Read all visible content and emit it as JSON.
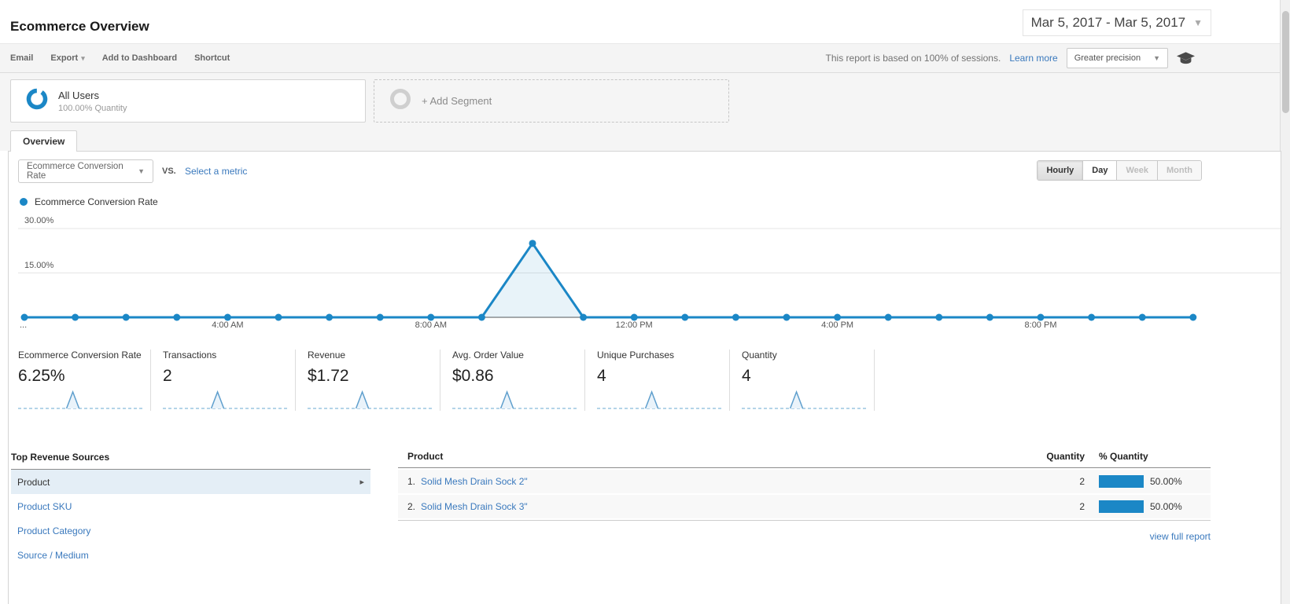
{
  "header": {
    "title": "Ecommerce Overview",
    "date_range": "Mar 5, 2017 - Mar 5, 2017"
  },
  "toolbar": {
    "actions": [
      {
        "label": "Email",
        "caret": false
      },
      {
        "label": "Export",
        "caret": true
      },
      {
        "label": "Add to Dashboard",
        "caret": false
      },
      {
        "label": "Shortcut",
        "caret": false
      }
    ],
    "sampling_note": "This report is based on 100% of sessions.",
    "learn_more_label": "Learn more",
    "precision_label": "Greater precision"
  },
  "segments": {
    "all_users": {
      "name": "All Users",
      "detail": "100.00% Quantity"
    },
    "add_segment_label": "+ Add Segment"
  },
  "tabs": {
    "overview_label": "Overview"
  },
  "controls": {
    "metric_selector_value": "Ecommerce Conversion Rate",
    "vs_label": "vs.",
    "select_metric_label": "Select a metric",
    "granularity": [
      {
        "label": "Hourly",
        "state": "active"
      },
      {
        "label": "Day",
        "state": "default"
      },
      {
        "label": "Week",
        "state": "disabled"
      },
      {
        "label": "Month",
        "state": "disabled"
      }
    ]
  },
  "chart_data": {
    "type": "line",
    "title": "Ecommerce Conversion Rate",
    "unit": "%",
    "x_unit": "hour of day",
    "x": [
      0,
      1,
      2,
      3,
      4,
      5,
      6,
      7,
      8,
      9,
      10,
      11,
      12,
      13,
      14,
      15,
      16,
      17,
      18,
      19,
      20,
      21,
      22,
      23
    ],
    "values": [
      0,
      0,
      0,
      0,
      0,
      0,
      0,
      0,
      0,
      0,
      25,
      0,
      0,
      0,
      0,
      0,
      0,
      0,
      0,
      0,
      0,
      0,
      0,
      0
    ],
    "peak": {
      "hour_index": 10,
      "value_pct": 25
    },
    "ylim": [
      0,
      35
    ],
    "yticks": [
      {
        "value": 30,
        "label": "30.00%"
      },
      {
        "value": 15,
        "label": "15.00%"
      }
    ],
    "xticks": [
      {
        "index": 0,
        "label": "..."
      },
      {
        "index": 4,
        "label": "4:00 AM"
      },
      {
        "index": 8,
        "label": "8:00 AM"
      },
      {
        "index": 12,
        "label": "12:00 PM"
      },
      {
        "index": 16,
        "label": "4:00 PM"
      },
      {
        "index": 20,
        "label": "8:00 PM"
      }
    ],
    "grid": true,
    "legend_position": "top-left"
  },
  "scorecards": [
    {
      "label": "Ecommerce Conversion Rate",
      "value": "6.25%"
    },
    {
      "label": "Transactions",
      "value": "2"
    },
    {
      "label": "Revenue",
      "value": "$1.72"
    },
    {
      "label": "Avg. Order Value",
      "value": "$0.86"
    },
    {
      "label": "Unique Purchases",
      "value": "4"
    },
    {
      "label": "Quantity",
      "value": "4"
    }
  ],
  "sparkline": {
    "points": 24,
    "spike_index": 10
  },
  "sources": {
    "title": "Top Revenue Sources",
    "items": [
      {
        "label": "Product",
        "selected": true
      },
      {
        "label": "Product SKU",
        "selected": false
      },
      {
        "label": "Product Category",
        "selected": false
      },
      {
        "label": "Source / Medium",
        "selected": false
      }
    ]
  },
  "table": {
    "headers": [
      "Product",
      "Quantity",
      "% Quantity"
    ],
    "rows": [
      {
        "rank": "1.",
        "product": "Solid Mesh Drain Sock 2\"",
        "quantity": "2",
        "pct_label": "50.00%",
        "pct_value": 50
      },
      {
        "rank": "2.",
        "product": "Solid Mesh Drain Sock 3\"",
        "quantity": "2",
        "pct_label": "50.00%",
        "pct_value": 50
      }
    ],
    "view_full_report_label": "view full report"
  },
  "colors": {
    "accent": "#1b87c6",
    "link": "#3a79bd",
    "selected_row_bg": "#e4eef6",
    "bar": "#1b87c6"
  }
}
